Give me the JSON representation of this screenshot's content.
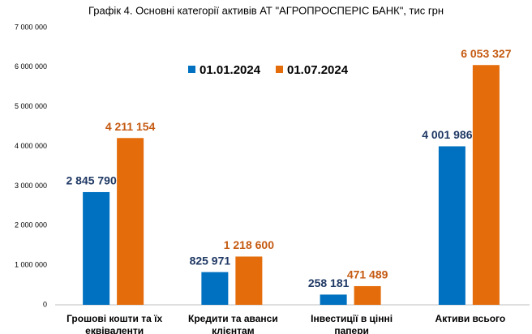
{
  "chart_data": {
    "type": "bar",
    "title": "Графік 4. Основні категорії активів АТ \"АГРОПРОСПЕРІС БАНК\", тис грн",
    "categories": [
      "Грошові кошти та їх еквіваленти",
      "Кредити та аванси клієнтам",
      "Інвестиції в цінні папери",
      "Активи всього"
    ],
    "series": [
      {
        "name": "01.01.2024",
        "color": "#0070c0",
        "label_color": "#1f3864",
        "values": [
          2845790,
          825971,
          258181,
          4001986
        ],
        "value_labels": [
          "2 845 790",
          "825 971",
          "258 181",
          "4 001 986"
        ]
      },
      {
        "name": "01.07.2024",
        "color": "#e46c0a",
        "label_color": "#c55a11",
        "values": [
          4211154,
          1218600,
          471489,
          6053327
        ],
        "value_labels": [
          "4 211 154",
          "1 218 600",
          "471 489",
          "6 053 327"
        ]
      }
    ],
    "ylim": [
      0,
      7000000
    ],
    "yticks": [
      0,
      {
        "value": 1000000,
        "label": "1 000 000"
      },
      {
        "value": 2000000,
        "label": "2 000 000"
      },
      {
        "value": 3000000,
        "label": "3 000 000"
      },
      {
        "value": 4000000,
        "label": "4 000 000"
      },
      {
        "value": 5000000,
        "label": "5 000 000"
      },
      {
        "value": 6000000,
        "label": "6 000 000"
      },
      {
        "value": 7000000,
        "label": "7 000 000"
      }
    ],
    "legend": "top"
  }
}
